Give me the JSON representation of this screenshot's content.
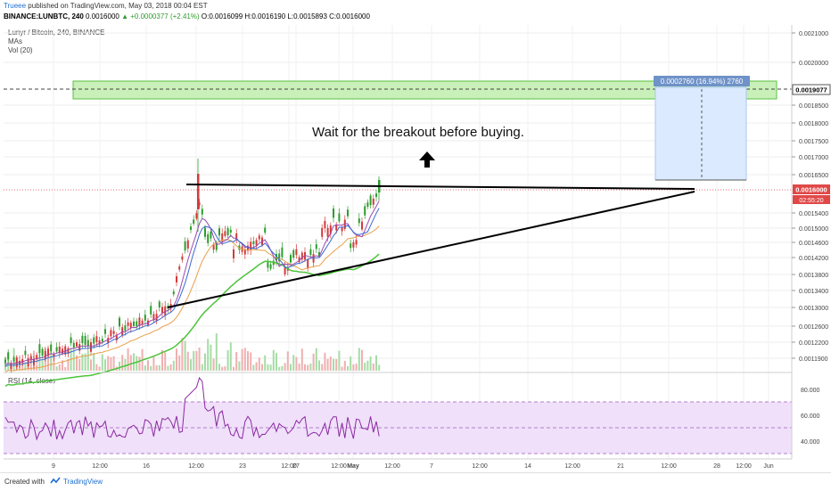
{
  "header": {
    "author": "Trueee",
    "published": "published on TradingView.com, May 03, 2018 00:04 EST",
    "symbol": "BINANCE:LUNBTC, 240",
    "last": "0.0016000",
    "change": "▲ +0.0000377 (+2.41%)",
    "ohlc": "O:0.0016099 H:0.0016190 L:0.0015893 C:0.0016000"
  },
  "legend": {
    "title": "Lunyr / Bitcoin, 240, BINANCE",
    "mas": "MAs",
    "vol": "Vol (20)",
    "rsi": "RSI (14, close)"
  },
  "annotation": {
    "text": "Wait for the breakout before buying.",
    "arrow": "🡅"
  },
  "measure": {
    "label": "0.0002760 (16.94%) 2760"
  },
  "price_axis": {
    "ticks": [
      "0.0021000",
      "0.0020000",
      "0.0018500",
      "0.0018000",
      "0.0017500",
      "0.0017000",
      "0.0016500",
      "0.0015400",
      "0.0015000",
      "0.0014600",
      "0.0014200",
      "0.0013800",
      "0.0013400",
      "0.0013000",
      "0.0012600",
      "0.0012200",
      "0.0011900"
    ],
    "label_green": "0.0019077",
    "label_last": "0.0016000",
    "label_countdown": "02:55:20"
  },
  "rsi_axis": {
    "ticks": [
      "80.000",
      "60.000",
      "40.000"
    ]
  },
  "time_axis": {
    "ticks": [
      "9",
      "12:00",
      "16",
      "12:00",
      "23",
      "12:00",
      "27",
      "12:00",
      "May",
      "12:00",
      "7",
      "12:00",
      "14",
      "12:00",
      "21",
      "12:00",
      "28",
      "12:00",
      "Jun"
    ]
  },
  "footer": {
    "created": "Created with",
    "brand": "TradingView"
  },
  "colors": {
    "up": "#2e9d2e",
    "down": "#d43a3a",
    "green_zone": "#c8f0b8",
    "measure_fill": "#dbeaff",
    "rsi_band": "#f0e0fa",
    "rsi_line": "#8a2aa0"
  },
  "chart_data": {
    "type": "candlestick",
    "symbol": "BINANCE:LUNBTC",
    "interval": "240",
    "last_close": 0.0016,
    "resistance_level": 0.00161,
    "support_trendline": [
      [
        0.0013
      ],
      [
        0.00161
      ]
    ],
    "target_zone": [
      0.00186,
      0.00192
    ],
    "measured_move": 0.000276
  }
}
